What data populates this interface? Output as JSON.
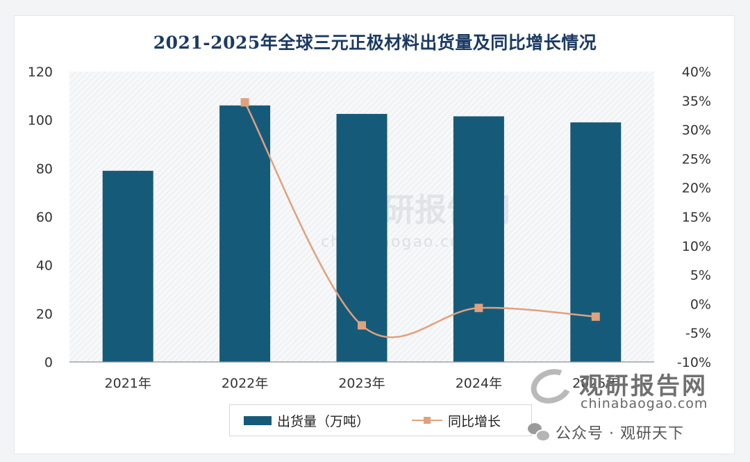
{
  "chart_data": {
    "type": "bar",
    "title": "2021-2025年全球三元正极材料出货量及同比增长情况",
    "categories": [
      "2021年",
      "2022年",
      "2023年",
      "2024年",
      "2025年"
    ],
    "series": [
      {
        "name": "出货量（万吨）",
        "type": "bar",
        "axis": "left",
        "values": [
          79,
          106,
          102.5,
          101.5,
          99
        ]
      },
      {
        "name": "同比增长",
        "type": "line",
        "axis": "right",
        "unit": "%",
        "values": [
          null,
          34.7,
          -3.7,
          -0.7,
          -2.2
        ]
      }
    ],
    "y_left": {
      "min": 0,
      "max": 120,
      "ticks": [
        "0",
        "20",
        "40",
        "60",
        "80",
        "100",
        "120"
      ]
    },
    "y_right": {
      "min": -10,
      "max": 40,
      "ticks": [
        "-10%",
        "-5%",
        "0%",
        "5%",
        "10%",
        "15%",
        "20%",
        "25%",
        "30%",
        "35%",
        "40%"
      ]
    },
    "legend_position": "bottom",
    "grid": false,
    "colors": {
      "bar": "#165a7a",
      "line": "#e0a17d",
      "title": "#1b3a63"
    }
  },
  "watermark": {
    "text": "观研报告网",
    "url": "chinabaogao.com"
  },
  "brand": {
    "name": "观研报告网",
    "url": "chinabaogao.com"
  },
  "wechat": {
    "text": "公众号 · 观研天下"
  }
}
